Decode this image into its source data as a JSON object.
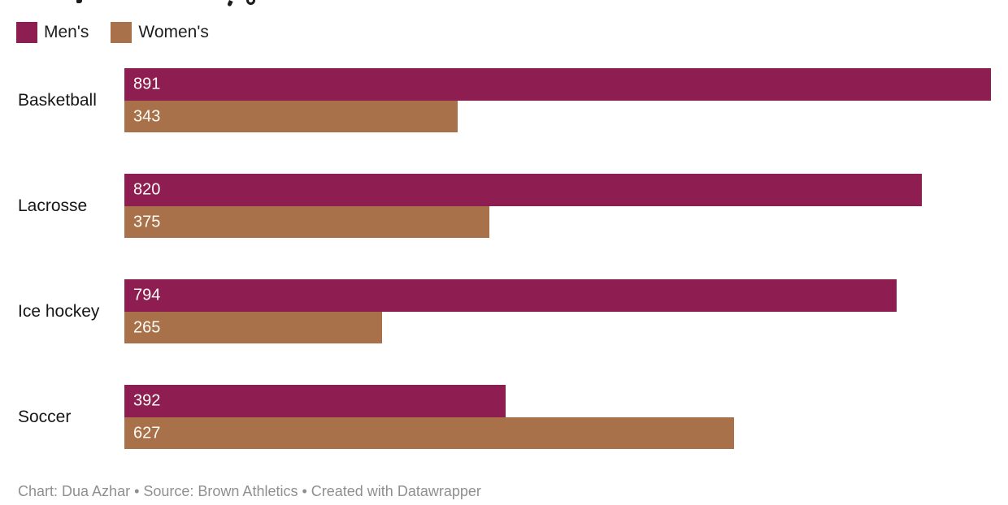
{
  "chart_data": {
    "type": "bar",
    "orientation": "horizontal",
    "categories": [
      "Basketball",
      "Lacrosse",
      "Ice hockey",
      "Soccer"
    ],
    "series": [
      {
        "name": "Men's",
        "color": "#8e1d51",
        "values": [
          891,
          820,
          794,
          392
        ]
      },
      {
        "name": "Women's",
        "color": "#a8714a",
        "values": [
          343,
          375,
          265,
          627
        ]
      }
    ],
    "xlim": [
      0,
      891
    ],
    "value_labels": "inside-start",
    "legend_position": "top-left",
    "grid": false
  },
  "legend": {
    "items": [
      {
        "label": "Men's",
        "color": "#8e1d51"
      },
      {
        "label": "Women's",
        "color": "#a8714a"
      }
    ]
  },
  "footer": {
    "attribution": "Chart: Dua Azhar • Source: Brown Athletics • Created with Datawrapper"
  },
  "colors": {
    "mens_bar": "#8e1d51",
    "womens_bar": "#a8714a",
    "category_label_text": "#161616",
    "bar_value_text": "#fffdf8",
    "footer_text": "#8f8f8f"
  }
}
